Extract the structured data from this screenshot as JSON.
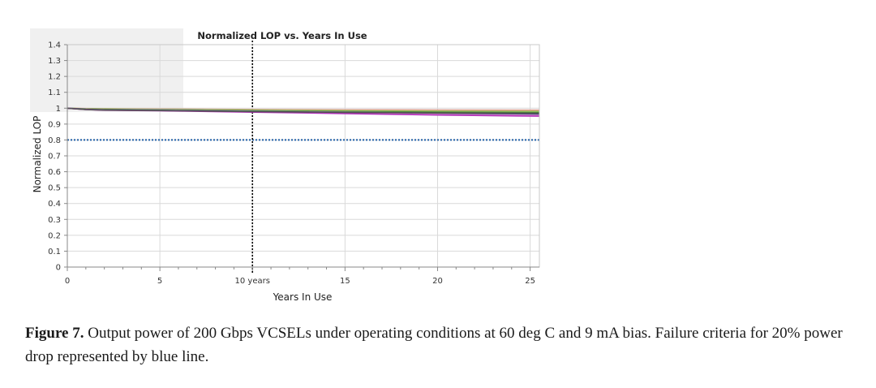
{
  "chart_data": {
    "type": "line",
    "title": "Normalized LOP vs. Years In Use",
    "xlabel": "Years In Use",
    "ylabel": "Normalized LOP",
    "xlim": [
      0,
      25.5
    ],
    "ylim": [
      0,
      1.4
    ],
    "x_ticks": [
      {
        "value": 0,
        "label": "0"
      },
      {
        "value": 5,
        "label": "5"
      },
      {
        "value": 10,
        "label": "10 years"
      },
      {
        "value": 15,
        "label": "15"
      },
      {
        "value": 20,
        "label": "20"
      },
      {
        "value": 25,
        "label": "25"
      }
    ],
    "y_ticks": [
      {
        "value": 0,
        "label": "0"
      },
      {
        "value": 0.1,
        "label": "0.1"
      },
      {
        "value": 0.2,
        "label": "0.2"
      },
      {
        "value": 0.3,
        "label": "0.3"
      },
      {
        "value": 0.4,
        "label": "0.4"
      },
      {
        "value": 0.5,
        "label": "0.5"
      },
      {
        "value": 0.6,
        "label": "0.6"
      },
      {
        "value": 0.7,
        "label": "0.7"
      },
      {
        "value": 0.8,
        "label": "0.8"
      },
      {
        "value": 0.9,
        "label": "0.9"
      },
      {
        "value": 1,
        "label": "1"
      },
      {
        "value": 1.1,
        "label": "1.1"
      },
      {
        "value": 1.2,
        "label": "1.2"
      },
      {
        "value": 1.3,
        "label": "1.3"
      },
      {
        "value": 1.4,
        "label": "1.4"
      }
    ],
    "grid": true,
    "x": [
      0,
      1,
      2,
      5,
      10,
      15,
      20,
      25.5
    ],
    "series": [
      {
        "color": "#e8a7a7",
        "values": [
          1.0,
          0.998,
          0.997,
          0.995,
          0.992,
          0.99,
          0.989,
          0.988
        ]
      },
      {
        "color": "#c8a070",
        "values": [
          1.0,
          0.997,
          0.996,
          0.994,
          0.99,
          0.987,
          0.985,
          0.984
        ]
      },
      {
        "color": "#9acd6a",
        "values": [
          1.0,
          0.996,
          0.995,
          0.992,
          0.987,
          0.983,
          0.98,
          0.978
        ]
      },
      {
        "color": "#4f8a3c",
        "values": [
          1.0,
          0.995,
          0.993,
          0.99,
          0.984,
          0.979,
          0.976,
          0.973
        ]
      },
      {
        "color": "#a68fc4",
        "values": [
          1.0,
          0.994,
          0.99,
          0.988,
          0.981,
          0.975,
          0.969,
          0.965
        ]
      },
      {
        "color": "#3a4b8c",
        "values": [
          1.0,
          0.993,
          0.989,
          0.986,
          0.978,
          0.971,
          0.964,
          0.959
        ]
      },
      {
        "color": "#e090d0",
        "values": [
          1.0,
          0.992,
          0.988,
          0.985,
          0.977,
          0.969,
          0.961,
          0.955
        ]
      },
      {
        "color": "#b030b8",
        "values": [
          1.0,
          0.992,
          0.987,
          0.984,
          0.975,
          0.966,
          0.957,
          0.95
        ]
      },
      {
        "color": "#505050",
        "values": [
          1.0,
          0.992,
          0.988,
          0.985,
          0.979,
          0.974,
          0.97,
          0.967
        ]
      }
    ],
    "reference_lines": [
      {
        "orientation": "horizontal",
        "value": 0.8,
        "color": "#1f5fa8",
        "style": "dotted"
      },
      {
        "orientation": "vertical",
        "value": 10,
        "color": "#000000",
        "style": "dotted"
      }
    ]
  },
  "caption": {
    "label": "Figure 7.",
    "text": " Output power of 200 Gbps VCSELs under operating conditions at 60 deg C and 9 mA bias. Failure criteria for 20% power drop represented by blue line."
  },
  "colors": {
    "grid": "#d9d9d9",
    "axis": "#888888",
    "shading": "#f0f0f0"
  }
}
